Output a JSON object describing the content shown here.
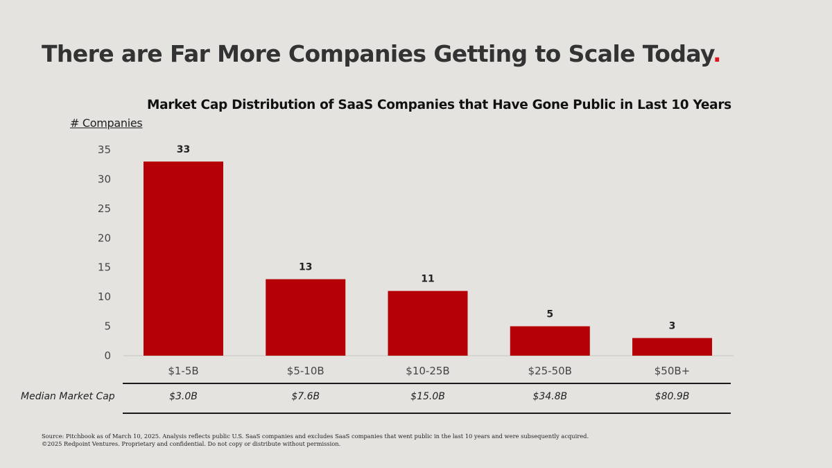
{
  "slide": {
    "title": "There are Far More Companies Getting to Scale Today",
    "title_accent": ".",
    "accent_color": "#e0141e"
  },
  "chart_data": {
    "type": "bar",
    "title": "Market Cap Distribution of SaaS Companies that Have Gone Public in Last 10 Years",
    "xlabel": "",
    "ylabel": "# Companies",
    "categories": [
      "$1-5B",
      "$5-10B",
      "$10-25B",
      "$25-50B",
      "$50B+"
    ],
    "values": [
      33,
      13,
      11,
      5,
      3
    ],
    "data_labels": [
      "33",
      "13",
      "11",
      "5",
      "3"
    ],
    "ylim": [
      0,
      35
    ],
    "yticks": [
      0,
      5,
      10,
      15,
      20,
      25,
      30,
      35
    ],
    "grid": false,
    "legend": "none",
    "bar_color": "#b50005"
  },
  "median_table": {
    "row_label": "Median Market Cap",
    "values": [
      "$3.0B",
      "$7.6B",
      "$15.0B",
      "$34.8B",
      "$80.9B"
    ]
  },
  "footnote": {
    "source": "Source: Pitchbook as of March 10, 2025. Analysis reflects public U.S. SaaS companies and excludes SaaS companies that went public in the last 10 years and were subsequently acquired.",
    "copyright": "©2025 Redpoint Ventures. Proprietary and confidential. Do not copy or distribute without permission."
  }
}
